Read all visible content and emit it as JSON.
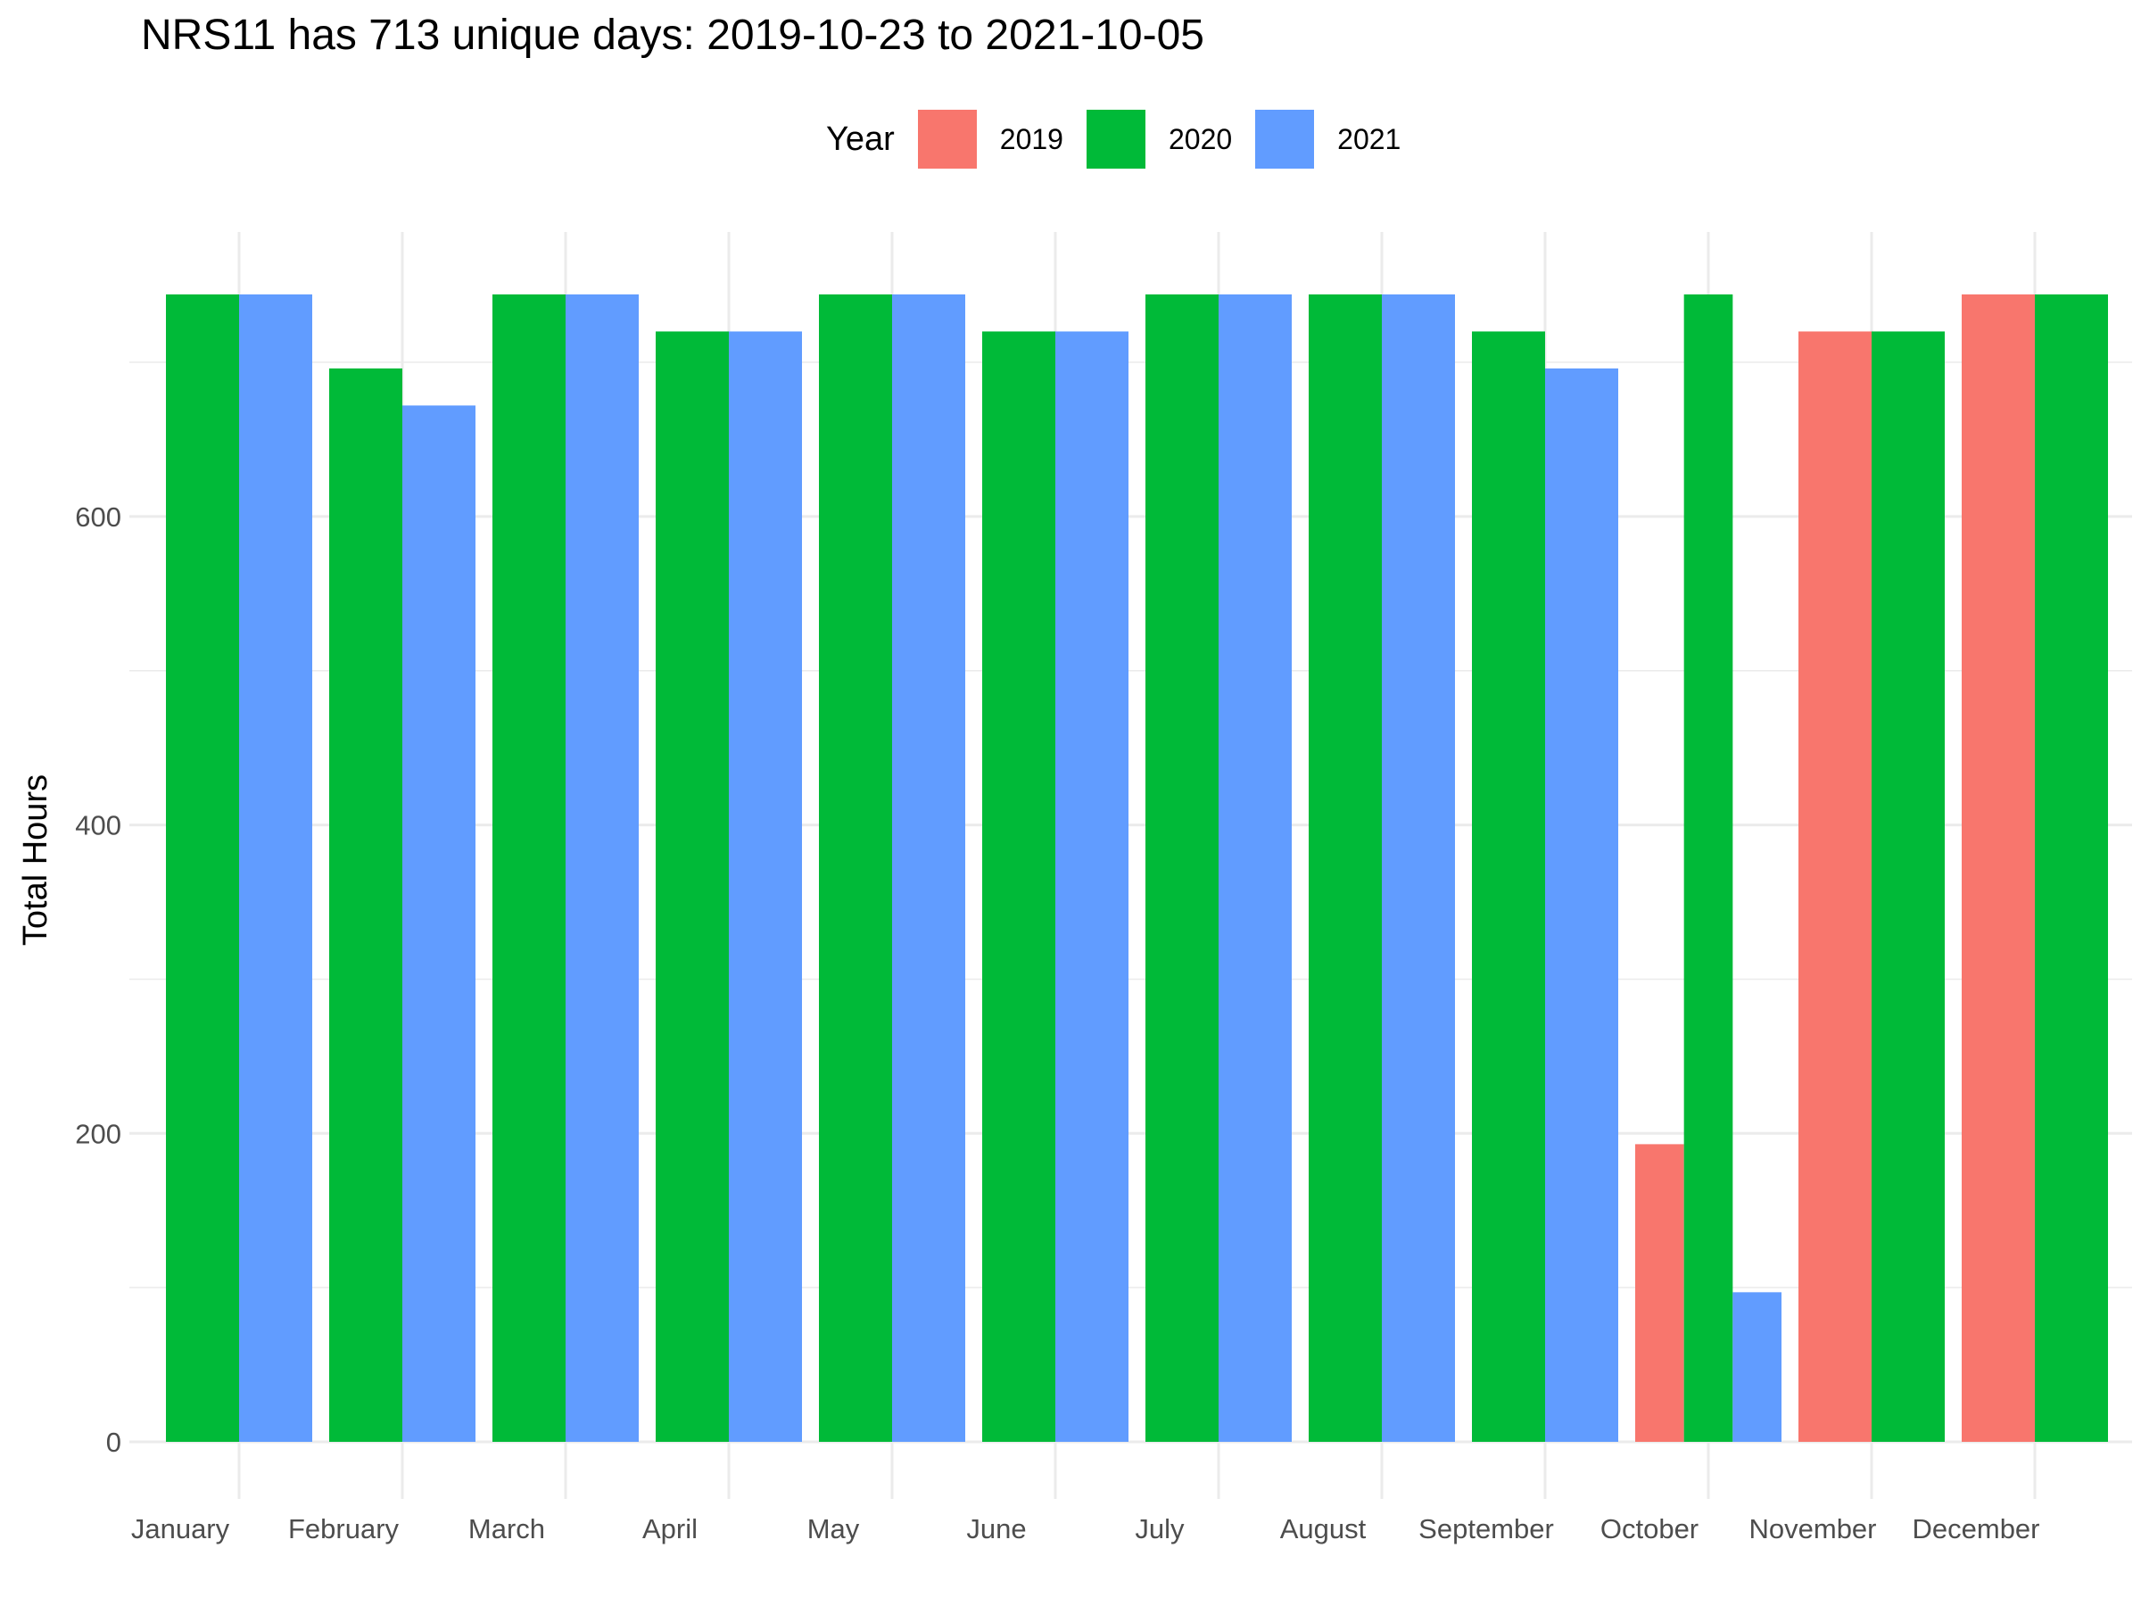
{
  "chart_data": {
    "type": "bar",
    "title": "NRS11 has 713 unique days: 2019-10-23 to 2021-10-05",
    "xlabel": "",
    "ylabel": "Total Hours",
    "ylim": [
      0,
      744
    ],
    "y_ticks": [
      0,
      200,
      400,
      600
    ],
    "grid": true,
    "legend": {
      "title": "Year",
      "position": "top"
    },
    "categories": [
      "January",
      "February",
      "March",
      "April",
      "May",
      "June",
      "July",
      "August",
      "September",
      "October",
      "November",
      "December"
    ],
    "series": [
      {
        "name": "2019",
        "color": "#F8766D",
        "values": [
          null,
          null,
          null,
          null,
          null,
          null,
          null,
          null,
          null,
          193,
          720,
          744
        ]
      },
      {
        "name": "2020",
        "color": "#00BA38",
        "values": [
          744,
          696,
          744,
          720,
          744,
          720,
          744,
          744,
          720,
          744,
          720,
          744
        ]
      },
      {
        "name": "2021",
        "color": "#619CFF",
        "values": [
          744,
          672,
          744,
          720,
          744,
          720,
          744,
          744,
          696,
          97,
          null,
          null
        ]
      }
    ]
  }
}
